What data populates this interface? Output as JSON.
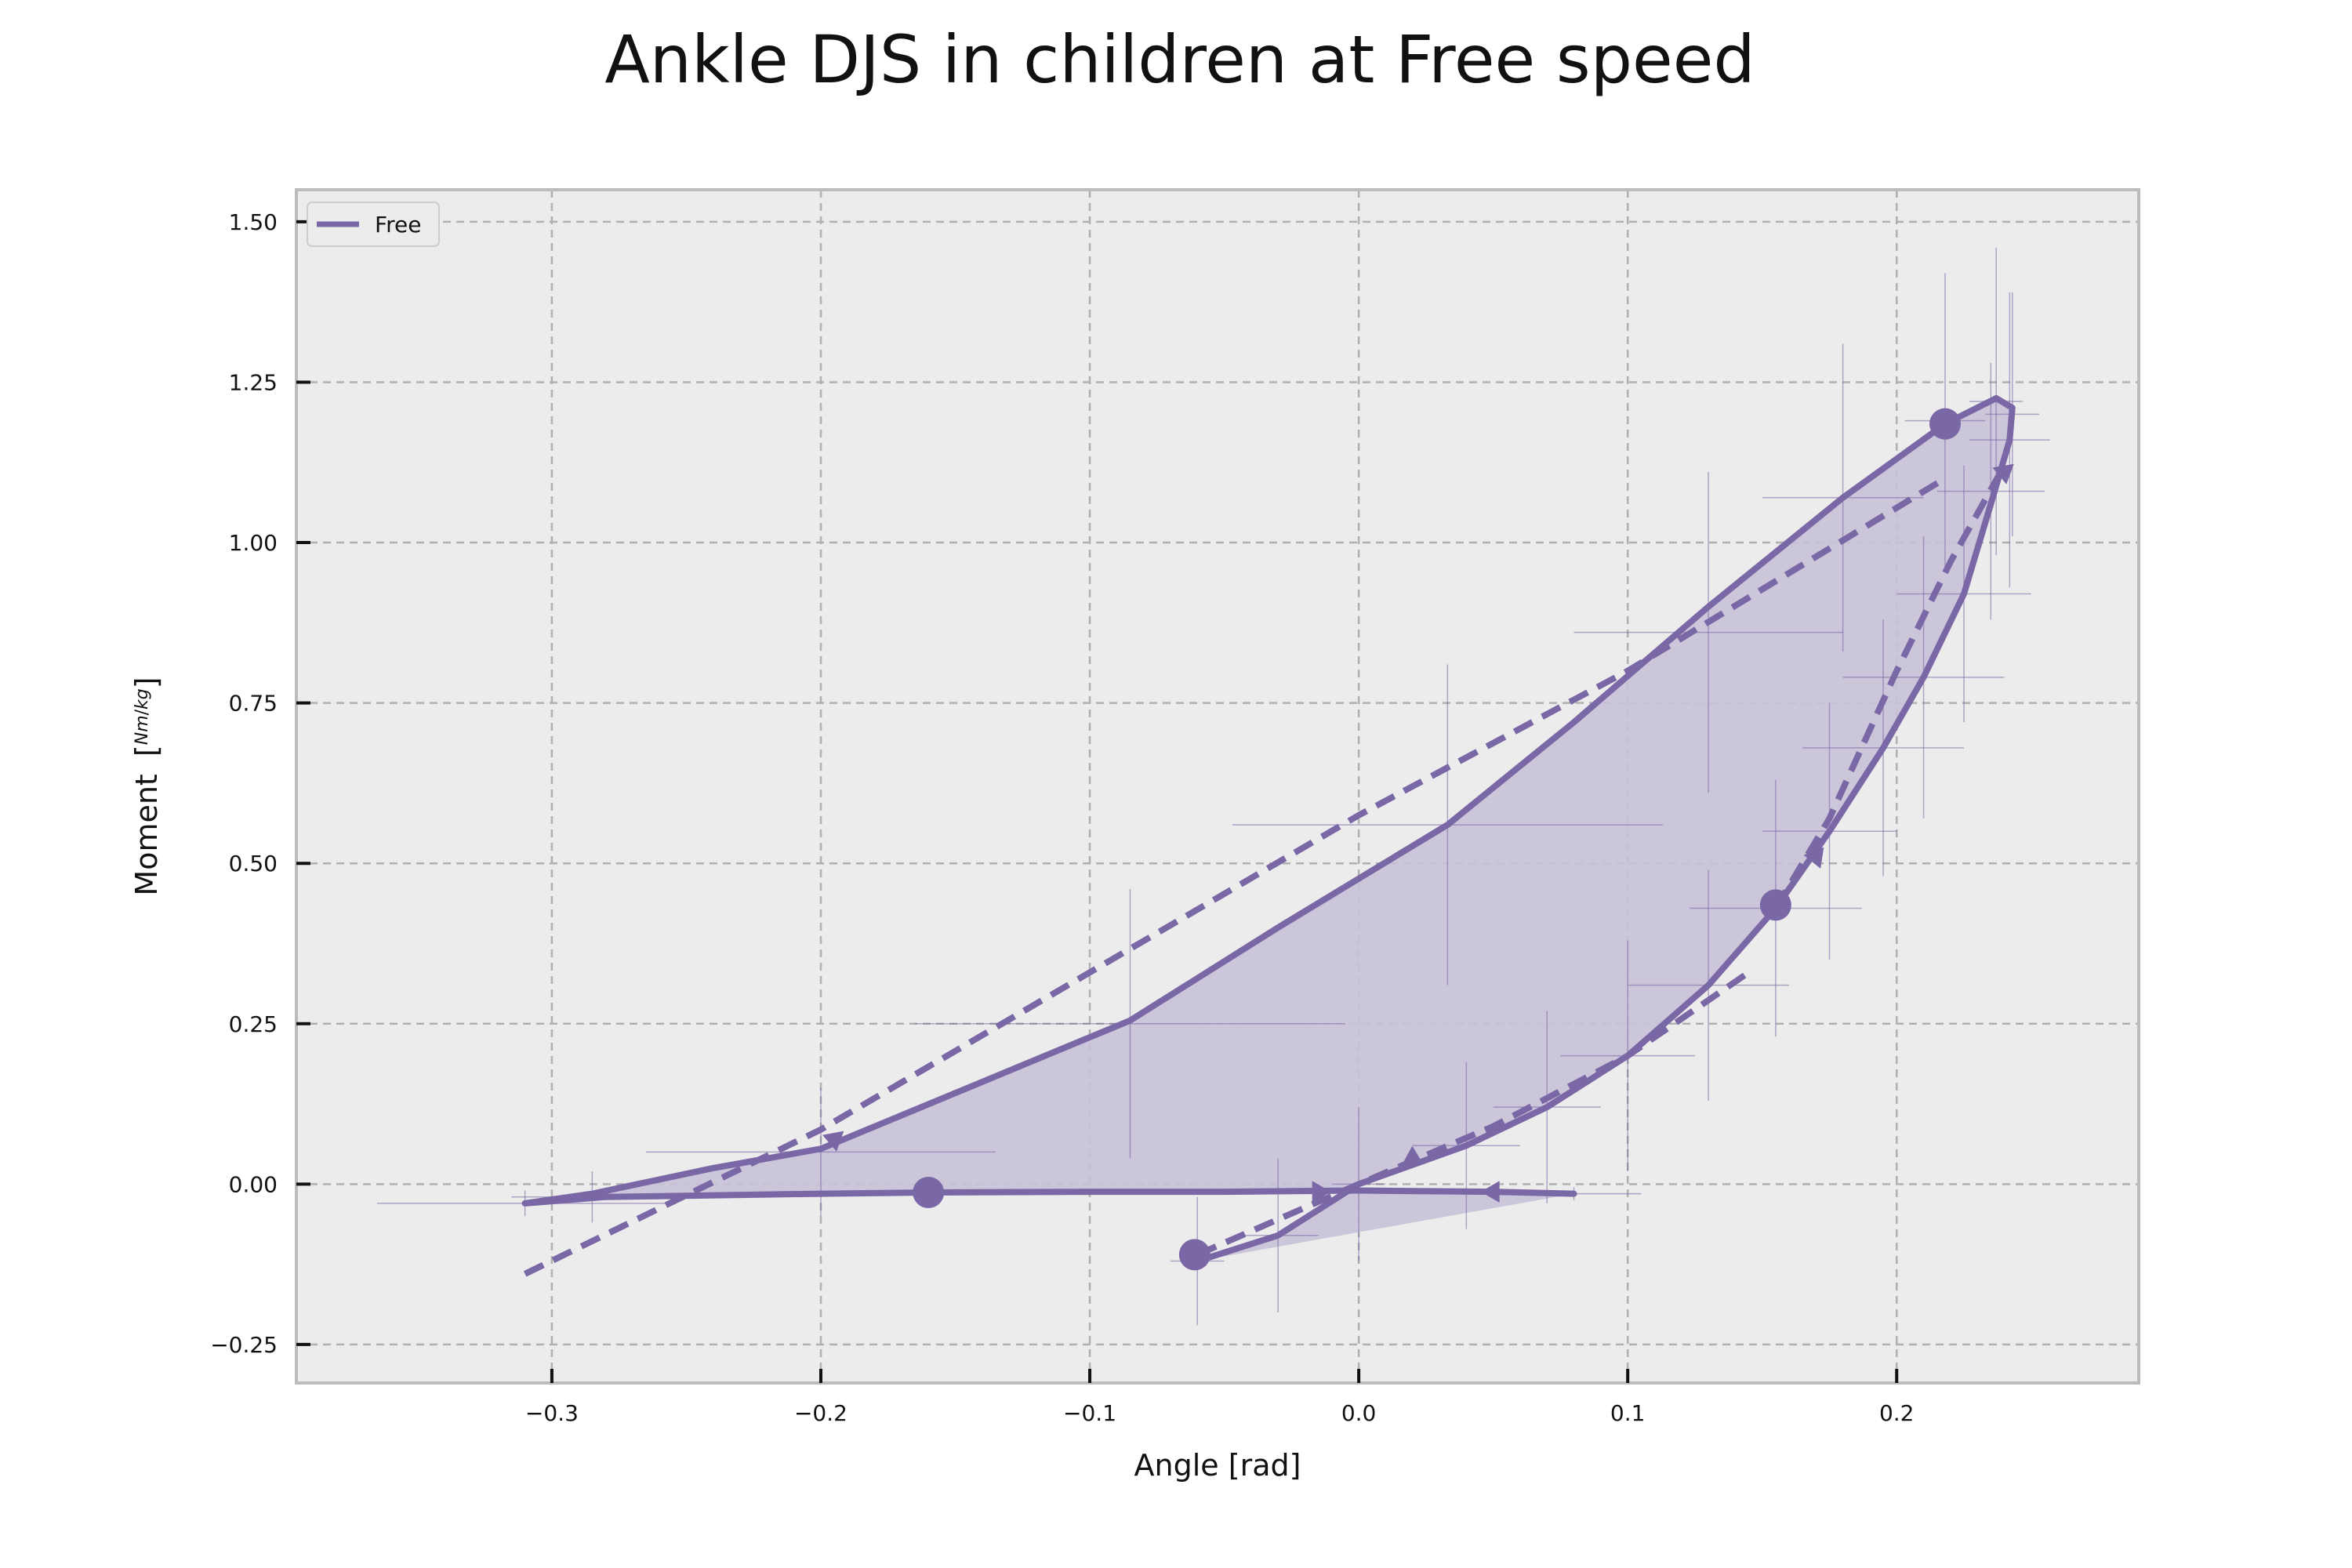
{
  "chart_data": {
    "type": "line",
    "title": "Ankle DJS in children at Free speed",
    "xlabel": "Angle [rad]",
    "ylabel": "Moment",
    "ylabel_unit_numerator": "Nm",
    "ylabel_unit_denominator": "kg",
    "xlim": [
      -0.395,
      0.29
    ],
    "ylim": [
      -0.31,
      1.55
    ],
    "xticks": [
      -0.3,
      -0.2,
      -0.1,
      0.0,
      0.1,
      0.2
    ],
    "xtick_labels": [
      "−0.3",
      "−0.2",
      "−0.1",
      "0.0",
      "0.1",
      "0.2"
    ],
    "yticks": [
      -0.25,
      0.0,
      0.25,
      0.5,
      0.75,
      1.0,
      1.25,
      1.5
    ],
    "ytick_labels": [
      "−0.25",
      "0.00",
      "0.25",
      "0.50",
      "0.75",
      "1.00",
      "1.25",
      "1.50"
    ],
    "grid": true,
    "legend_position": "top-left",
    "colors": {
      "series": "#7a68a6",
      "fill": "#c8c2d8",
      "plot_bg": "#ececec",
      "grid": "#b0b0b0",
      "frame": "#bcbcbc"
    },
    "series": [
      {
        "name": "Free",
        "style": "solid",
        "x": [
          -0.06,
          -0.03,
          0.0,
          0.04,
          0.07,
          0.1,
          0.13,
          0.155,
          0.175,
          0.195,
          0.21,
          0.225,
          0.235,
          0.242,
          0.243,
          0.237,
          0.218,
          0.18,
          0.13,
          0.08,
          0.033,
          -0.03,
          -0.085,
          -0.2,
          -0.24,
          -0.285,
          -0.31,
          -0.28,
          -0.2,
          -0.16,
          -0.1,
          -0.05,
          0.0,
          0.05,
          0.08
        ],
        "y": [
          -0.12,
          -0.08,
          0.0,
          0.06,
          0.12,
          0.2,
          0.31,
          0.43,
          0.55,
          0.68,
          0.79,
          0.92,
          1.06,
          1.16,
          1.21,
          1.225,
          1.185,
          1.07,
          0.9,
          0.72,
          0.56,
          0.4,
          0.255,
          0.055,
          0.025,
          -0.015,
          -0.03,
          -0.02,
          -0.015,
          -0.013,
          -0.012,
          -0.012,
          -0.01,
          -0.012,
          -0.015
        ]
      }
    ],
    "dashed_fits": [
      {
        "style": "dashed",
        "x": [
          -0.06,
          0.0,
          0.05,
          0.1,
          0.145
        ],
        "y": [
          -0.11,
          0.0,
          0.09,
          0.2,
          0.33
        ]
      },
      {
        "style": "dashed",
        "x": [
          0.155,
          0.175,
          0.2,
          0.22,
          0.24
        ],
        "y": [
          0.43,
          0.57,
          0.8,
          0.97,
          1.12
        ]
      },
      {
        "style": "dashed",
        "x": [
          -0.31,
          -0.2,
          -0.1,
          0.0,
          0.1,
          0.218
        ],
        "y": [
          -0.14,
          0.085,
          0.33,
          0.575,
          0.8,
          1.1
        ]
      }
    ],
    "markers": [
      {
        "x": -0.16,
        "y": -0.013
      },
      {
        "x": -0.061,
        "y": -0.11
      },
      {
        "x": 0.155,
        "y": 0.435
      },
      {
        "x": 0.218,
        "y": 1.185
      }
    ],
    "arrows": [
      {
        "x": -0.195,
        "y": 0.07,
        "dir": 2.8
      },
      {
        "x": -0.015,
        "y": -0.012,
        "dir": 0.0
      },
      {
        "x": 0.05,
        "y": -0.012,
        "dir": 3.14159
      },
      {
        "x": 0.02,
        "y": 0.04,
        "dir": -0.5
      },
      {
        "x": 0.17,
        "y": 0.51,
        "dir": -1.2
      },
      {
        "x": 0.24,
        "y": 1.11,
        "dir": -1.4
      }
    ],
    "errorbars": [
      {
        "x": -0.31,
        "y": -0.03,
        "xerr": 0.055,
        "yerr": 0.02
      },
      {
        "x": -0.285,
        "y": -0.02,
        "xerr": 0.03,
        "yerr": 0.04
      },
      {
        "x": -0.2,
        "y": 0.05,
        "xerr": 0.065,
        "yerr": 0.1
      },
      {
        "x": -0.085,
        "y": 0.25,
        "xerr": 0.08,
        "yerr": 0.21
      },
      {
        "x": 0.033,
        "y": 0.56,
        "xerr": 0.08,
        "yerr": 0.25
      },
      {
        "x": 0.13,
        "y": 0.86,
        "xerr": 0.05,
        "yerr": 0.25
      },
      {
        "x": 0.18,
        "y": 1.07,
        "xerr": 0.03,
        "yerr": 0.24
      },
      {
        "x": 0.218,
        "y": 1.19,
        "xerr": 0.015,
        "yerr": 0.23
      },
      {
        "x": 0.237,
        "y": 1.22,
        "xerr": 0.01,
        "yerr": 0.24
      },
      {
        "x": 0.243,
        "y": 1.2,
        "xerr": 0.01,
        "yerr": 0.19
      },
      {
        "x": 0.242,
        "y": 1.16,
        "xerr": 0.015,
        "yerr": 0.23
      },
      {
        "x": 0.235,
        "y": 1.08,
        "xerr": 0.02,
        "yerr": 0.2
      },
      {
        "x": 0.225,
        "y": 0.92,
        "xerr": 0.025,
        "yerr": 0.2
      },
      {
        "x": 0.21,
        "y": 0.79,
        "xerr": 0.03,
        "yerr": 0.22
      },
      {
        "x": 0.195,
        "y": 0.68,
        "xerr": 0.03,
        "yerr": 0.2
      },
      {
        "x": 0.175,
        "y": 0.55,
        "xerr": 0.025,
        "yerr": 0.2
      },
      {
        "x": 0.155,
        "y": 0.43,
        "xerr": 0.032,
        "yerr": 0.2
      },
      {
        "x": 0.13,
        "y": 0.31,
        "xerr": 0.03,
        "yerr": 0.18
      },
      {
        "x": 0.1,
        "y": 0.2,
        "xerr": 0.025,
        "yerr": 0.18
      },
      {
        "x": 0.07,
        "y": 0.12,
        "xerr": 0.02,
        "yerr": 0.15
      },
      {
        "x": 0.04,
        "y": 0.06,
        "xerr": 0.02,
        "yerr": 0.13
      },
      {
        "x": 0.0,
        "y": 0.0,
        "xerr": 0.01,
        "yerr": 0.12
      },
      {
        "x": -0.03,
        "y": -0.08,
        "xerr": 0.015,
        "yerr": 0.12
      },
      {
        "x": -0.06,
        "y": -0.12,
        "xerr": 0.01,
        "yerr": 0.1
      },
      {
        "x": 0.08,
        "y": -0.015,
        "xerr": 0.025,
        "yerr": 0.01
      }
    ]
  }
}
